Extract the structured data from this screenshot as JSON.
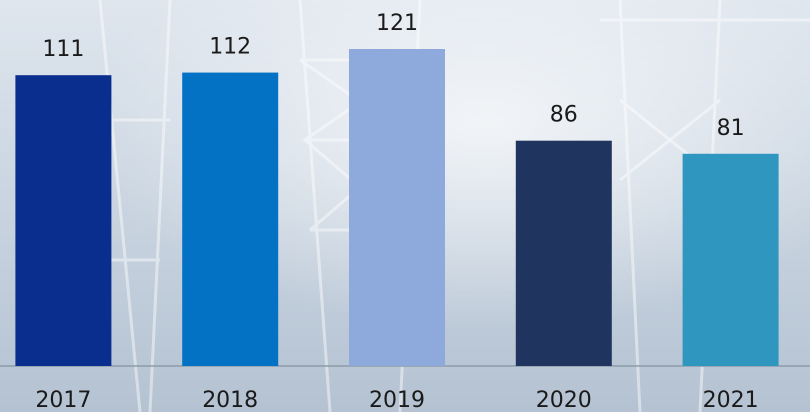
{
  "chart_data": {
    "type": "bar",
    "categories": [
      "2017",
      "2018",
      "2019",
      "2020",
      "2021"
    ],
    "values": [
      111,
      112,
      121,
      86,
      81
    ],
    "colors": [
      "#0a2e8e",
      "#0372c4",
      "#8eaadd",
      "#1f3560",
      "#2f96c0"
    ]
  }
}
